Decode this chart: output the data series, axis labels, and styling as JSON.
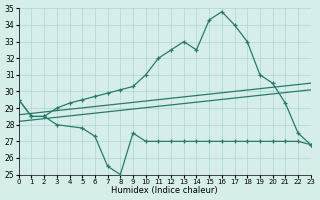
{
  "upper_x": [
    0,
    1,
    2,
    3,
    4,
    5,
    6,
    7,
    8,
    9,
    10,
    11,
    12,
    13,
    14,
    15,
    16,
    17,
    18,
    19,
    20,
    21,
    22,
    23
  ],
  "upper_y": [
    29.5,
    28.5,
    28.5,
    29.0,
    29.3,
    29.5,
    29.7,
    29.9,
    30.1,
    30.3,
    31.0,
    32.0,
    32.5,
    33.0,
    32.5,
    34.3,
    34.8,
    34.0,
    33.0,
    31.0,
    30.5,
    29.3,
    27.5,
    26.8
  ],
  "lower_x": [
    0,
    1,
    2,
    3,
    5,
    6,
    7,
    8,
    9,
    10,
    11,
    12,
    13,
    14,
    15,
    16,
    17,
    18,
    19,
    20,
    21,
    22,
    23
  ],
  "lower_y": [
    29.5,
    28.5,
    28.5,
    28.0,
    27.8,
    27.3,
    25.5,
    25.0,
    27.5,
    27.0,
    27.0,
    27.0,
    27.0,
    27.0,
    27.0,
    27.0,
    27.0,
    27.0,
    27.0,
    27.0,
    27.0,
    27.0,
    26.8
  ],
  "trend1_x": [
    0,
    23
  ],
  "trend1_y": [
    28.6,
    30.5
  ],
  "trend2_x": [
    0,
    23
  ],
  "trend2_y": [
    28.2,
    30.1
  ],
  "color": "#2a7a6a",
  "bg_color": "#d6eeea",
  "grid_color": "#aed4cf",
  "xlabel": "Humidex (Indice chaleur)",
  "ylim": [
    25,
    35
  ],
  "xlim": [
    0,
    23
  ],
  "yticks": [
    25,
    26,
    27,
    28,
    29,
    30,
    31,
    32,
    33,
    34,
    35
  ],
  "xticks": [
    0,
    1,
    2,
    3,
    4,
    5,
    6,
    7,
    8,
    9,
    10,
    11,
    12,
    13,
    14,
    15,
    16,
    17,
    18,
    19,
    20,
    21,
    22,
    23
  ]
}
